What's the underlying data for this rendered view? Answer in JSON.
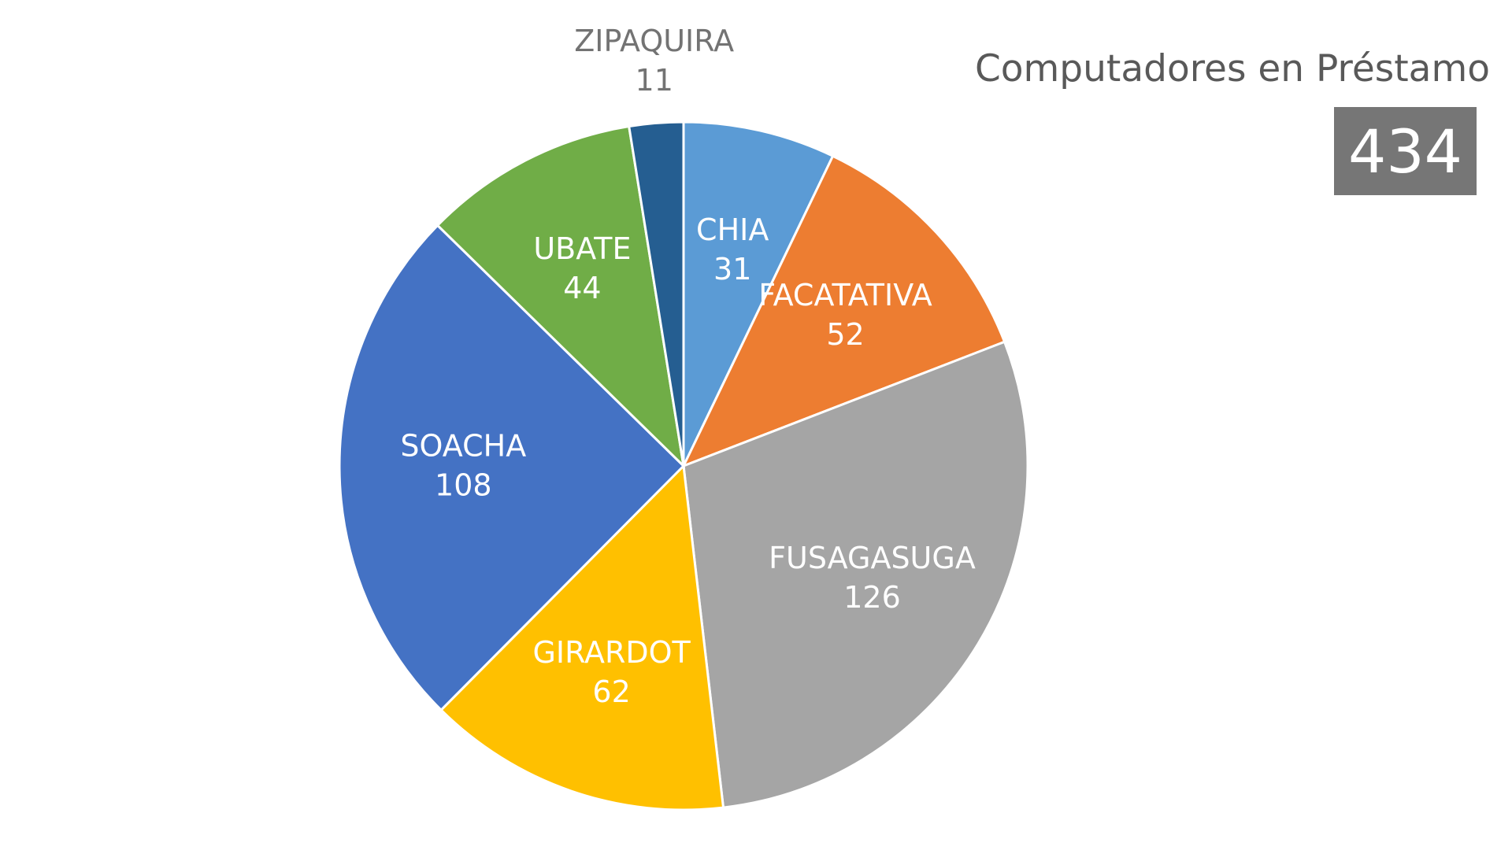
{
  "chart_data": {
    "type": "pie",
    "title": "",
    "start": "top",
    "direction": "clockwise",
    "slices": [
      {
        "label": "CHIA",
        "value": 31,
        "color": "#5B9BD5",
        "label_color": "#FFFFFF"
      },
      {
        "label": "FACATATIVA",
        "value": 52,
        "color": "#ED7D31",
        "label_color": "#FFFFFF"
      },
      {
        "label": "FUSAGASUGA",
        "value": 126,
        "color": "#A5A5A5",
        "label_color": "#FFFFFF"
      },
      {
        "label": "GIRARDOT",
        "value": 62,
        "color": "#FFC000",
        "label_color": "#FFFFFF"
      },
      {
        "label": "SOACHA",
        "value": 108,
        "color": "#4472C4",
        "label_color": "#FFFFFF"
      },
      {
        "label": "UBATE",
        "value": 44,
        "color": "#70AD47",
        "label_color": "#FFFFFF"
      },
      {
        "label": "ZIPAQUIRA",
        "value": 11,
        "color": "#255E91",
        "label_color": "#737373"
      }
    ]
  },
  "kpi": {
    "title": "Computadores en Préstamo",
    "value": "434",
    "box_color": "#767676"
  }
}
